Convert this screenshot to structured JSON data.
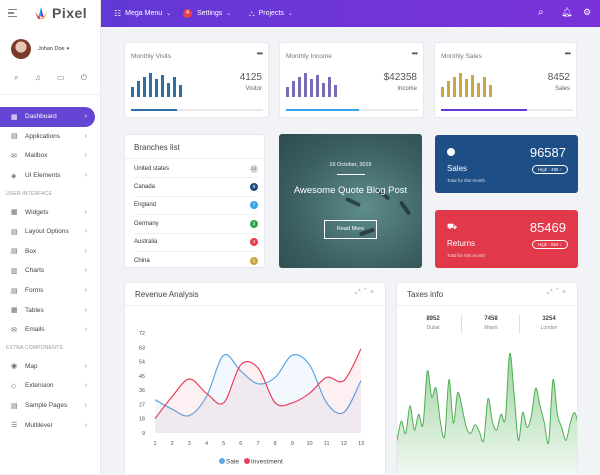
{
  "brand": {
    "name": "Pixel"
  },
  "topnav": {
    "mega_menu": "Mega Menu",
    "settings": "Settings",
    "settings_badge": "4",
    "projects": "Projects"
  },
  "user": {
    "name": "Johan Doe"
  },
  "sidebar": {
    "items_main": [
      {
        "label": "Dashboard",
        "icon": "dashboard-icon",
        "active": true
      },
      {
        "label": "Applications",
        "icon": "apps-icon"
      },
      {
        "label": "Mailbox",
        "icon": "mailbox-icon"
      },
      {
        "label": "UI Elements",
        "icon": "ui-elements-icon"
      }
    ],
    "section_ui": "USER INTERFACE",
    "items_ui": [
      {
        "label": "Widgets"
      },
      {
        "label": "Layout Options"
      },
      {
        "label": "Box"
      },
      {
        "label": "Charts"
      },
      {
        "label": "Forms"
      },
      {
        "label": "Tables"
      },
      {
        "label": "Emails"
      }
    ],
    "section_extra": "EXTRA COMPONENTS",
    "items_extra": [
      {
        "label": "Map"
      },
      {
        "label": "Extension"
      },
      {
        "label": "Sample Pages"
      },
      {
        "label": "Multilevel"
      }
    ]
  },
  "stats": [
    {
      "label": "Monthly Visits",
      "value": "4125",
      "sub": "Visitor",
      "color": "#2f6ea5",
      "progress": 0.35,
      "line_color": "#2f6ea5"
    },
    {
      "label": "Monthly Income",
      "value": "$42358",
      "sub": "Income",
      "color": "#7a6cb3",
      "progress": 0.55,
      "line_color": "#3aa4ea"
    },
    {
      "label": "Monthly Sales",
      "value": "8452",
      "sub": "Sales",
      "color": "#c9a843",
      "progress": 0.65,
      "line_color": "#6a36d6"
    }
  ],
  "branches": {
    "title": "Branches list",
    "rows": [
      {
        "name": "United states",
        "count": "14",
        "color": "#d6d6d6"
      },
      {
        "name": "Canada",
        "count": "8",
        "color": "#1f4f80"
      },
      {
        "name": "England",
        "count": "7",
        "color": "#3aa4ea"
      },
      {
        "name": "Germany",
        "count": "3",
        "color": "#2eaa4e"
      },
      {
        "name": "Australia",
        "count": "4",
        "color": "#e8404f"
      },
      {
        "name": "China",
        "count": "1",
        "color": "#c9a843"
      }
    ]
  },
  "blog": {
    "date": "16 October, 2016",
    "title": "Awesome Quote Blog Post",
    "button": "Read More"
  },
  "kpis": [
    {
      "name": "Sales",
      "value": "96587",
      "sub": "Total for this month",
      "pill": "High : 485 ↑",
      "color": "#1e4e86"
    },
    {
      "name": "Returns",
      "value": "85469",
      "sub": "Total for this month",
      "pill": "High : 563 ↑",
      "color": "#e2394a"
    }
  ],
  "revenue": {
    "title": "Revenue Analysis"
  },
  "taxes": {
    "title": "Taxes info",
    "cols": [
      {
        "value": "8952",
        "city": "Dubai"
      },
      {
        "value": "7458",
        "city": "Miami"
      },
      {
        "value": "3254",
        "city": "London"
      }
    ]
  },
  "chart_data": [
    {
      "type": "line",
      "title": "Revenue Analysis",
      "x": [
        1,
        2,
        3,
        4,
        5,
        6,
        7,
        8,
        9,
        10,
        11,
        12,
        13
      ],
      "yticks": [
        9,
        18,
        27,
        36,
        45,
        54,
        63,
        72
      ],
      "ylim": [
        9,
        72
      ],
      "series": [
        {
          "name": "Sale",
          "color": "#5ca8e4",
          "values": [
            30,
            24,
            20,
            32,
            58,
            48,
            40,
            44,
            58,
            52,
            28,
            22,
            42
          ]
        },
        {
          "name": "Investment",
          "color": "#e8405a",
          "values": [
            18,
            32,
            43,
            34,
            28,
            52,
            50,
            28,
            28,
            34,
            44,
            42,
            62
          ]
        }
      ],
      "legend": "bottom"
    },
    {
      "type": "area",
      "title": "Taxes info",
      "color": "#4caf50",
      "values": [
        40,
        62,
        48,
        80,
        52,
        70,
        58,
        120,
        90,
        100,
        62,
        45,
        110,
        60,
        95,
        78,
        55,
        48,
        58,
        50,
        40,
        88,
        62,
        52,
        70,
        65,
        140,
        95,
        40,
        72,
        55,
        68,
        100,
        80,
        60,
        38,
        110,
        70,
        55,
        40,
        60,
        72,
        55
      ]
    }
  ]
}
